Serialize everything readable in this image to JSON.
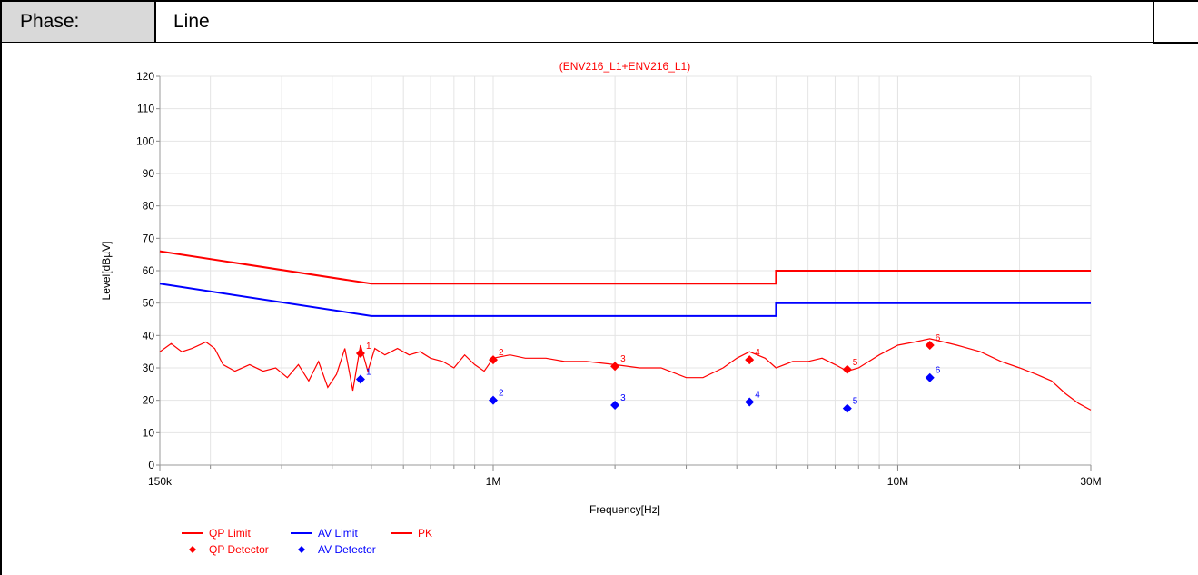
{
  "header": {
    "phase_label": "Phase:",
    "phase_value": "Line"
  },
  "chart_data": {
    "type": "line",
    "title": "(ENV216_L1+ENV216_L1)",
    "xlabel": "Frequency[Hz]",
    "ylabel": "Level[dBµV]",
    "x_scale": "log",
    "xlim": [
      150000,
      30000000
    ],
    "ylim": [
      0,
      120
    ],
    "x_ticks": [
      {
        "value": 150000,
        "label": "150k"
      },
      {
        "value": 1000000,
        "label": "1M"
      },
      {
        "value": 10000000,
        "label": "10M"
      },
      {
        "value": 30000000,
        "label": "30M"
      }
    ],
    "y_ticks": [
      0,
      10,
      20,
      30,
      40,
      50,
      60,
      70,
      80,
      90,
      100,
      110,
      120
    ],
    "grid": true,
    "colors": {
      "red": "#ff0000",
      "blue": "#0000ff"
    },
    "series": [
      {
        "name": "QP Limit",
        "kind": "line",
        "color": "#ff0000",
        "points": [
          [
            150000,
            66
          ],
          [
            500000,
            56
          ],
          [
            5000000,
            56
          ],
          [
            5000000,
            60
          ],
          [
            30000000,
            60
          ]
        ]
      },
      {
        "name": "AV Limit",
        "kind": "line",
        "color": "#0000ff",
        "points": [
          [
            150000,
            56
          ],
          [
            500000,
            46
          ],
          [
            5000000,
            46
          ],
          [
            5000000,
            50
          ],
          [
            30000000,
            50
          ]
        ]
      },
      {
        "name": "PK",
        "kind": "line",
        "color": "#ff0000",
        "points": [
          [
            150000,
            35
          ],
          [
            160000,
            37.5
          ],
          [
            170000,
            35
          ],
          [
            180000,
            36
          ],
          [
            195000,
            38
          ],
          [
            205000,
            36
          ],
          [
            215000,
            31
          ],
          [
            230000,
            29
          ],
          [
            250000,
            31
          ],
          [
            270000,
            29
          ],
          [
            290000,
            30
          ],
          [
            310000,
            27
          ],
          [
            330000,
            31
          ],
          [
            350000,
            26
          ],
          [
            370000,
            32
          ],
          [
            390000,
            24
          ],
          [
            410000,
            28
          ],
          [
            430000,
            36
          ],
          [
            450000,
            23
          ],
          [
            470000,
            37
          ],
          [
            490000,
            29
          ],
          [
            510000,
            36
          ],
          [
            540000,
            34
          ],
          [
            580000,
            36
          ],
          [
            620000,
            34
          ],
          [
            660000,
            35
          ],
          [
            700000,
            33
          ],
          [
            750000,
            32
          ],
          [
            800000,
            30
          ],
          [
            850000,
            34
          ],
          [
            900000,
            31
          ],
          [
            950000,
            29
          ],
          [
            1000000,
            33
          ],
          [
            1100000,
            34
          ],
          [
            1200000,
            33
          ],
          [
            1350000,
            33
          ],
          [
            1500000,
            32
          ],
          [
            1700000,
            32
          ],
          [
            2000000,
            31
          ],
          [
            2300000,
            30
          ],
          [
            2600000,
            30
          ],
          [
            3000000,
            27
          ],
          [
            3300000,
            27
          ],
          [
            3700000,
            30
          ],
          [
            4000000,
            33
          ],
          [
            4300000,
            35
          ],
          [
            4700000,
            33
          ],
          [
            5000000,
            30
          ],
          [
            5500000,
            32
          ],
          [
            6000000,
            32
          ],
          [
            6500000,
            33
          ],
          [
            7000000,
            31
          ],
          [
            7500000,
            29
          ],
          [
            8000000,
            30
          ],
          [
            9000000,
            34
          ],
          [
            10000000,
            37
          ],
          [
            11000000,
            38
          ],
          [
            12000000,
            39
          ],
          [
            13000000,
            38
          ],
          [
            14000000,
            37
          ],
          [
            16000000,
            35
          ],
          [
            18000000,
            32
          ],
          [
            20000000,
            30
          ],
          [
            22000000,
            28
          ],
          [
            24000000,
            26
          ],
          [
            26000000,
            22
          ],
          [
            28000000,
            19
          ],
          [
            30000000,
            17
          ]
        ]
      },
      {
        "name": "QP Detector",
        "kind": "marker",
        "color": "#ff0000",
        "points": [
          [
            470000,
            34.5
          ],
          [
            1000000,
            32.5
          ],
          [
            2000000,
            30.5
          ],
          [
            4300000,
            32.5
          ],
          [
            7500000,
            29.5
          ],
          [
            12000000,
            37
          ]
        ],
        "labels": [
          "1",
          "2",
          "3",
          "4",
          "5",
          "6"
        ]
      },
      {
        "name": "AV Detector",
        "kind": "marker",
        "color": "#0000ff",
        "points": [
          [
            470000,
            26.5
          ],
          [
            1000000,
            20
          ],
          [
            2000000,
            18.5
          ],
          [
            4300000,
            19.5
          ],
          [
            7500000,
            17.5
          ],
          [
            12000000,
            27
          ]
        ],
        "labels": [
          "1",
          "2",
          "3",
          "4",
          "5",
          "6"
        ]
      }
    ],
    "legend": [
      {
        "name": "QP Limit",
        "style": "line",
        "color": "#ff0000"
      },
      {
        "name": "AV Limit",
        "style": "line",
        "color": "#0000ff"
      },
      {
        "name": "PK",
        "style": "line",
        "color": "#ff0000"
      },
      {
        "name": "QP Detector",
        "style": "marker",
        "color": "#ff0000"
      },
      {
        "name": "AV Detector",
        "style": "marker",
        "color": "#0000ff"
      }
    ],
    "legend_position": "bottom-left"
  }
}
